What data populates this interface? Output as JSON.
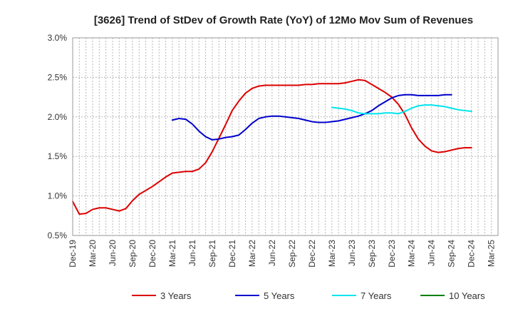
{
  "chart_data": {
    "type": "line",
    "title": "[3626]  Trend of StDev of Growth Rate (YoY) of 12Mo Mov Sum of Revenues",
    "xlabel": "",
    "ylabel": "",
    "ylim": [
      0.5,
      3.0
    ],
    "y_ticks": [
      "0.5%",
      "1.0%",
      "1.5%",
      "2.0%",
      "2.5%",
      "3.0%"
    ],
    "y_tick_values": [
      0.5,
      1.0,
      1.5,
      2.0,
      2.5,
      3.0
    ],
    "x_ticks": [
      "Dec-19",
      "Mar-20",
      "Jun-20",
      "Sep-20",
      "Dec-20",
      "Mar-21",
      "Jun-21",
      "Sep-21",
      "Dec-21",
      "Mar-22",
      "Jun-22",
      "Sep-22",
      "Dec-22",
      "Mar-23",
      "Jun-23",
      "Sep-23",
      "Dec-23",
      "Mar-24",
      "Jun-24",
      "Sep-24",
      "Dec-24",
      "Mar-25"
    ],
    "x_month_count": 64,
    "grid": true,
    "legend_position": "bottom",
    "series": [
      {
        "name": "3 Years",
        "color": "#dd0000",
        "start_month": 0,
        "values": [
          0.93,
          0.77,
          0.78,
          0.83,
          0.85,
          0.85,
          0.83,
          0.81,
          0.84,
          0.94,
          1.02,
          1.07,
          1.12,
          1.18,
          1.24,
          1.29,
          1.3,
          1.31,
          1.31,
          1.34,
          1.42,
          1.56,
          1.73,
          1.9,
          2.08,
          2.2,
          2.3,
          2.36,
          2.39,
          2.4,
          2.4,
          2.4,
          2.4,
          2.4,
          2.4,
          2.41,
          2.41,
          2.42,
          2.42,
          2.42,
          2.42,
          2.43,
          2.45,
          2.47,
          2.46,
          2.41,
          2.36,
          2.31,
          2.25,
          2.16,
          2.03,
          1.86,
          1.72,
          1.63,
          1.57,
          1.55,
          1.56,
          1.58,
          1.6,
          1.61,
          1.61
        ]
      },
      {
        "name": "5 Years",
        "color": "#0000cc",
        "start_month": 15,
        "values": [
          1.96,
          1.98,
          1.97,
          1.91,
          1.82,
          1.75,
          1.71,
          1.72,
          1.74,
          1.75,
          1.77,
          1.84,
          1.92,
          1.98,
          2.0,
          2.01,
          2.01,
          2.0,
          1.99,
          1.98,
          1.96,
          1.94,
          1.93,
          1.93,
          1.94,
          1.95,
          1.97,
          1.99,
          2.01,
          2.04,
          2.08,
          2.14,
          2.19,
          2.24,
          2.27,
          2.28,
          2.28,
          2.27,
          2.27,
          2.27,
          2.27,
          2.28,
          2.28
        ]
      },
      {
        "name": "7 Years",
        "color": "#00e5ee",
        "start_month": 39,
        "values": [
          2.12,
          2.11,
          2.1,
          2.08,
          2.05,
          2.04,
          2.04,
          2.04,
          2.05,
          2.05,
          2.04,
          2.07,
          2.11,
          2.14,
          2.15,
          2.15,
          2.14,
          2.13,
          2.11,
          2.09,
          2.08,
          2.07
        ]
      },
      {
        "name": "10 Years",
        "color": "#008000",
        "start_month": 0,
        "values": []
      }
    ]
  }
}
